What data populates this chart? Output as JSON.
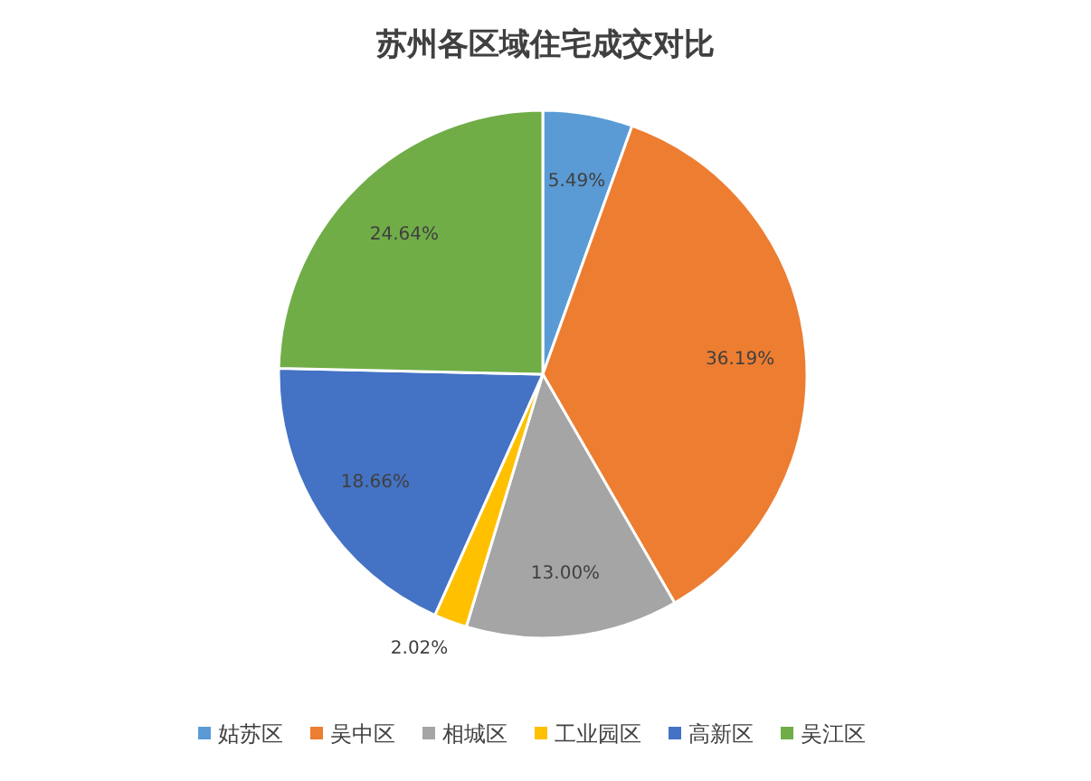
{
  "chart_data": {
    "type": "pie",
    "title": "苏州各区域住宅成交对比",
    "categories": [
      "姑苏区",
      "吴中区",
      "相城区",
      "工业园区",
      "高新区",
      "吴江区"
    ],
    "values": [
      5.49,
      36.19,
      13.0,
      2.02,
      18.66,
      24.64
    ],
    "colors": [
      "#5b9bd5",
      "#ed7d31",
      "#a5a5a5",
      "#ffc000",
      "#4472c4",
      "#70ad47"
    ],
    "value_labels": [
      "5.49%",
      "36.19%",
      "13.00%",
      "2.02%",
      "18.66%",
      "24.64%"
    ],
    "legend": "bottom"
  }
}
